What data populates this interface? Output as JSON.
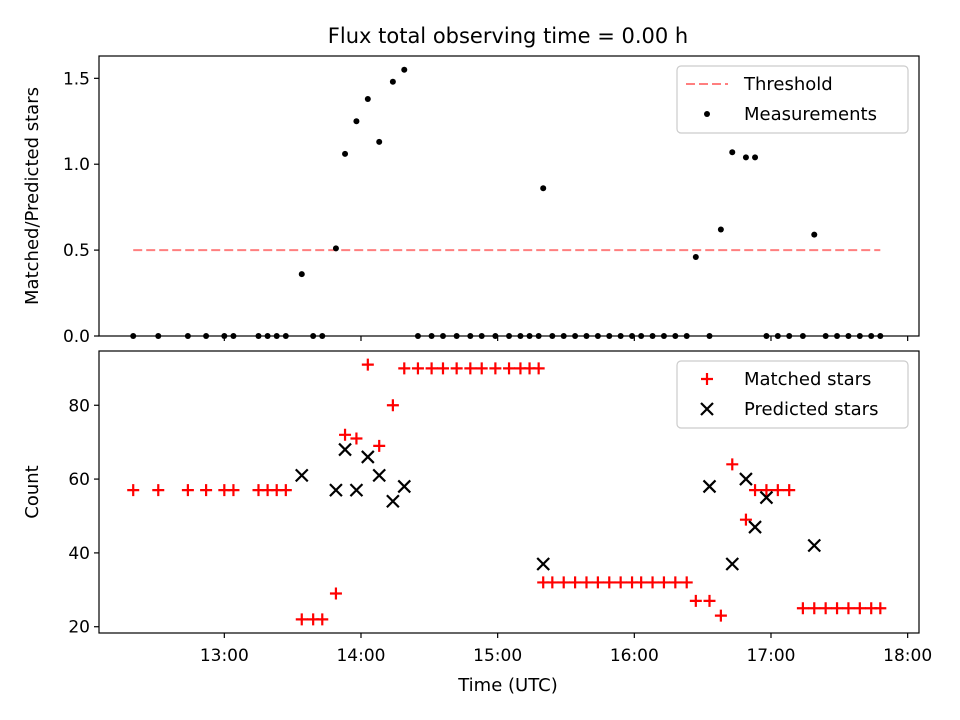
{
  "figure": {
    "title": "Flux total observing time = 0.00 h",
    "xlabel": "Time (UTC)"
  },
  "chart_data": [
    {
      "type": "scatter",
      "panel": "top",
      "ylabel": "Matched/Predicted stars",
      "xlim_hours": [
        12.083,
        18.083
      ],
      "ylim": [
        0,
        1.63
      ],
      "yticks": [
        0.0,
        0.5,
        1.0,
        1.5
      ],
      "ytick_labels": [
        "0.0",
        "0.5",
        "1.0",
        "1.5"
      ],
      "legend_position": "top-right",
      "series": [
        {
          "name": "Threshold",
          "kind": "dashed-line",
          "color": "#ff7f7f",
          "x": [
            "12:20",
            "17:48"
          ],
          "y": [
            0.5,
            0.5
          ]
        },
        {
          "name": "Measurements",
          "kind": "dot",
          "color": "#000000",
          "x": [
            "12:20",
            "12:31",
            "12:44",
            "12:52",
            "13:00",
            "13:04",
            "13:15",
            "13:19",
            "13:23",
            "13:27",
            "13:34",
            "13:39",
            "13:43",
            "13:49",
            "13:53",
            "13:58",
            "14:03",
            "14:08",
            "14:14",
            "14:19",
            "14:25",
            "14:31",
            "14:36",
            "14:42",
            "14:48",
            "14:53",
            "14:59",
            "15:05",
            "15:10",
            "15:14",
            "15:18",
            "15:20",
            "15:24",
            "15:29",
            "15:34",
            "15:39",
            "15:44",
            "15:49",
            "15:54",
            "15:59",
            "16:03",
            "16:08",
            "16:13",
            "16:18",
            "16:23",
            "16:27",
            "16:33",
            "16:38",
            "16:43",
            "16:49",
            "16:53",
            "16:58",
            "17:03",
            "17:08",
            "17:14",
            "17:19",
            "17:24",
            "17:29",
            "17:34",
            "17:39",
            "17:44",
            "17:48"
          ],
          "y": [
            0,
            0,
            0,
            0,
            0,
            0,
            0,
            0,
            0,
            0,
            0.36,
            0,
            0,
            0.51,
            1.06,
            1.25,
            1.38,
            1.13,
            1.48,
            1.55,
            0,
            0,
            0,
            0,
            0,
            0,
            0,
            0,
            0,
            0,
            0,
            0.86,
            0,
            0,
            0,
            0,
            0,
            0,
            0,
            0,
            0,
            0,
            0,
            0,
            0,
            0.46,
            0,
            0.62,
            1.07,
            1.04,
            1.04,
            0,
            0,
            0,
            0,
            0.59,
            0,
            0,
            0,
            0,
            0,
            0
          ]
        }
      ]
    },
    {
      "type": "scatter",
      "panel": "bottom",
      "ylabel": "Count",
      "xlim_hours": [
        12.083,
        18.083
      ],
      "ylim": [
        18.3,
        94.7
      ],
      "yticks": [
        20,
        40,
        60,
        80
      ],
      "ytick_labels": [
        "20",
        "40",
        "60",
        "80"
      ],
      "xtick_labels": [
        "13:00",
        "14:00",
        "15:00",
        "16:00",
        "17:00",
        "18:00"
      ],
      "legend_position": "top-right",
      "series": [
        {
          "name": "Matched stars",
          "kind": "plus",
          "color": "#ff0000",
          "x": [
            "12:20",
            "12:31",
            "12:44",
            "12:52",
            "13:00",
            "13:04",
            "13:15",
            "13:19",
            "13:23",
            "13:27",
            "13:34",
            "13:39",
            "13:43",
            "13:49",
            "13:53",
            "13:58",
            "14:03",
            "14:08",
            "14:14",
            "14:19",
            "14:25",
            "14:31",
            "14:36",
            "14:42",
            "14:48",
            "14:53",
            "14:59",
            "15:05",
            "15:10",
            "15:14",
            "15:18",
            "15:20",
            "15:24",
            "15:29",
            "15:34",
            "15:39",
            "15:44",
            "15:49",
            "15:54",
            "15:59",
            "16:03",
            "16:08",
            "16:13",
            "16:18",
            "16:23",
            "16:27",
            "16:33",
            "16:38",
            "16:43",
            "16:49",
            "16:53",
            "16:58",
            "17:03",
            "17:08",
            "17:14",
            "17:19",
            "17:24",
            "17:29",
            "17:34",
            "17:39",
            "17:44",
            "17:48"
          ],
          "y": [
            57,
            57,
            57,
            57,
            57,
            57,
            57,
            57,
            57,
            57,
            22,
            22,
            22,
            29,
            72,
            71,
            91,
            69,
            80,
            90,
            90,
            90,
            90,
            90,
            90,
            90,
            90,
            90,
            90,
            90,
            90,
            32,
            32,
            32,
            32,
            32,
            32,
            32,
            32,
            32,
            32,
            32,
            32,
            32,
            32,
            27,
            27,
            23,
            64,
            49,
            57,
            57,
            57,
            57,
            25,
            25,
            25,
            25,
            25,
            25,
            25,
            25
          ]
        },
        {
          "name": "Predicted stars",
          "kind": "x",
          "color": "#000000",
          "x": [
            "13:34",
            "13:49",
            "13:53",
            "13:58",
            "14:03",
            "14:08",
            "14:14",
            "14:19",
            "15:20",
            "16:33",
            "16:43",
            "16:49",
            "16:53",
            "16:58",
            "17:19"
          ],
          "y": [
            61,
            57,
            68,
            57,
            66,
            61,
            54,
            58,
            37,
            58,
            37,
            60,
            47,
            55,
            42
          ]
        }
      ]
    }
  ]
}
